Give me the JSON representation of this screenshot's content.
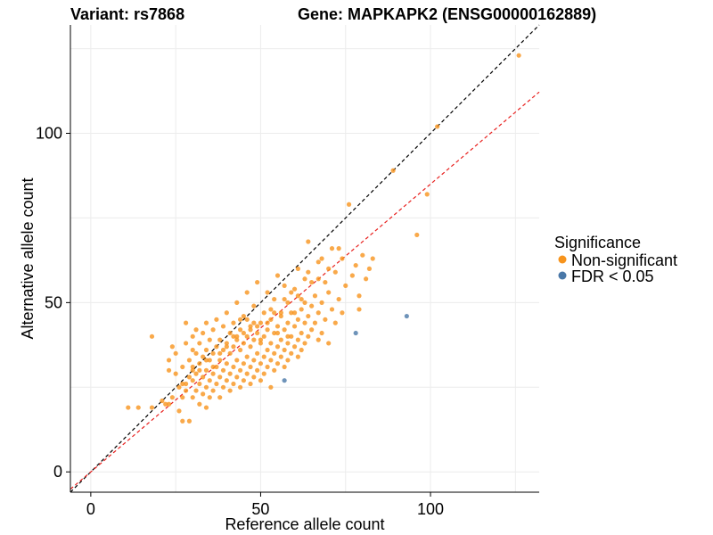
{
  "chart_data": {
    "type": "scatter",
    "title_left": "Variant: rs7868",
    "title_right": "Gene: MAPKAPK2 (ENSG00000162889)",
    "xlabel": "Reference allele count",
    "ylabel": "Alternative allele count",
    "xlim": [
      -6,
      132
    ],
    "ylim": [
      -6,
      132
    ],
    "x_ticks": [
      0,
      50,
      100
    ],
    "y_ticks": [
      0,
      50,
      100
    ],
    "grid": true,
    "legend": {
      "title": "Significance",
      "position": "right",
      "entries": [
        {
          "label": "Non-significant",
          "color": "#F7941D"
        },
        {
          "label": "FDR < 0.05",
          "color": "#4A78A8"
        }
      ]
    },
    "reference_lines": [
      {
        "style": "dashed",
        "color": "#000000",
        "slope": 1.0,
        "intercept": 0
      },
      {
        "style": "dashed",
        "color": "#E8201E",
        "slope": 0.85,
        "intercept": 0
      }
    ],
    "series": [
      {
        "name": "Non-significant",
        "color": "#F7941D",
        "points": [
          [
            11,
            19
          ],
          [
            14,
            19
          ],
          [
            18,
            19
          ],
          [
            18,
            40
          ],
          [
            21,
            21
          ],
          [
            22,
            20
          ],
          [
            23,
            20
          ],
          [
            23,
            30
          ],
          [
            23,
            33
          ],
          [
            24,
            37
          ],
          [
            25,
            29
          ],
          [
            25,
            35
          ],
          [
            26,
            18
          ],
          [
            27,
            15
          ],
          [
            27,
            22
          ],
          [
            27,
            26
          ],
          [
            27,
            31
          ],
          [
            28,
            24
          ],
          [
            28,
            38
          ],
          [
            28,
            44
          ],
          [
            29,
            15
          ],
          [
            29,
            28
          ],
          [
            29,
            33
          ],
          [
            30,
            22
          ],
          [
            30,
            27
          ],
          [
            30,
            31
          ],
          [
            30,
            36
          ],
          [
            30,
            40
          ],
          [
            31,
            24
          ],
          [
            31,
            29
          ],
          [
            31,
            35
          ],
          [
            31,
            42
          ],
          [
            32,
            20
          ],
          [
            32,
            26
          ],
          [
            32,
            32
          ],
          [
            32,
            38
          ],
          [
            33,
            23
          ],
          [
            33,
            28
          ],
          [
            33,
            34
          ],
          [
            33,
            41
          ],
          [
            34,
            19
          ],
          [
            34,
            25
          ],
          [
            34,
            30
          ],
          [
            34,
            36
          ],
          [
            34,
            44
          ],
          [
            35,
            22
          ],
          [
            35,
            27
          ],
          [
            35,
            33
          ],
          [
            35,
            39
          ],
          [
            36,
            24
          ],
          [
            36,
            29
          ],
          [
            36,
            35
          ],
          [
            36,
            42
          ],
          [
            37,
            26
          ],
          [
            37,
            31
          ],
          [
            37,
            37
          ],
          [
            37,
            45
          ],
          [
            38,
            22
          ],
          [
            38,
            28
          ],
          [
            38,
            33
          ],
          [
            38,
            39
          ],
          [
            39,
            25
          ],
          [
            39,
            30
          ],
          [
            39,
            36
          ],
          [
            39,
            43
          ],
          [
            40,
            27
          ],
          [
            40,
            32
          ],
          [
            40,
            38
          ],
          [
            40,
            47
          ],
          [
            41,
            24
          ],
          [
            41,
            29
          ],
          [
            41,
            35
          ],
          [
            41,
            41
          ],
          [
            42,
            26
          ],
          [
            42,
            31
          ],
          [
            42,
            37
          ],
          [
            42,
            44
          ],
          [
            43,
            28
          ],
          [
            43,
            33
          ],
          [
            43,
            39
          ],
          [
            43,
            50
          ],
          [
            44,
            25
          ],
          [
            44,
            30
          ],
          [
            44,
            36
          ],
          [
            44,
            42
          ],
          [
            45,
            27
          ],
          [
            45,
            32
          ],
          [
            45,
            38
          ],
          [
            45,
            46
          ],
          [
            46,
            29
          ],
          [
            46,
            34
          ],
          [
            46,
            40
          ],
          [
            46,
            53
          ],
          [
            47,
            26
          ],
          [
            47,
            31
          ],
          [
            47,
            37
          ],
          [
            47,
            43
          ],
          [
            48,
            28
          ],
          [
            48,
            33
          ],
          [
            48,
            39
          ],
          [
            48,
            49
          ],
          [
            49,
            30
          ],
          [
            49,
            35
          ],
          [
            49,
            41
          ],
          [
            49,
            56
          ],
          [
            50,
            27
          ],
          [
            50,
            32
          ],
          [
            50,
            38
          ],
          [
            50,
            44
          ],
          [
            51,
            29
          ],
          [
            51,
            34
          ],
          [
            51,
            40
          ],
          [
            51,
            47
          ],
          [
            52,
            31
          ],
          [
            52,
            36
          ],
          [
            52,
            42
          ],
          [
            52,
            53
          ],
          [
            53,
            25
          ],
          [
            53,
            33
          ],
          [
            53,
            38
          ],
          [
            53,
            45
          ],
          [
            54,
            30
          ],
          [
            54,
            35
          ],
          [
            54,
            41
          ],
          [
            54,
            51
          ],
          [
            55,
            32
          ],
          [
            55,
            37
          ],
          [
            55,
            43
          ],
          [
            55,
            58
          ],
          [
            56,
            34
          ],
          [
            56,
            39
          ],
          [
            56,
            46
          ],
          [
            57,
            31
          ],
          [
            57,
            36
          ],
          [
            57,
            42
          ],
          [
            57,
            55
          ],
          [
            58,
            33
          ],
          [
            58,
            38
          ],
          [
            58,
            44
          ],
          [
            58,
            50
          ],
          [
            59,
            35
          ],
          [
            59,
            40
          ],
          [
            59,
            47
          ],
          [
            60,
            37
          ],
          [
            60,
            43
          ],
          [
            60,
            54
          ],
          [
            61,
            34
          ],
          [
            61,
            39
          ],
          [
            61,
            45
          ],
          [
            61,
            60
          ],
          [
            62,
            36
          ],
          [
            62,
            41
          ],
          [
            62,
            48
          ],
          [
            63,
            38
          ],
          [
            63,
            44
          ],
          [
            63,
            57
          ],
          [
            64,
            40
          ],
          [
            64,
            46
          ],
          [
            64,
            68
          ],
          [
            65,
            42
          ],
          [
            65,
            49
          ],
          [
            66,
            44
          ],
          [
            66,
            52
          ],
          [
            67,
            39
          ],
          [
            67,
            47
          ],
          [
            67,
            62
          ],
          [
            68,
            41
          ],
          [
            68,
            50
          ],
          [
            69,
            45
          ],
          [
            69,
            56
          ],
          [
            70,
            38
          ],
          [
            70,
            53
          ],
          [
            71,
            48
          ],
          [
            71,
            66
          ],
          [
            72,
            44
          ],
          [
            72,
            59
          ],
          [
            73,
            51
          ],
          [
            74,
            47
          ],
          [
            74,
            63
          ],
          [
            75,
            55
          ],
          [
            76,
            79
          ],
          [
            77,
            58
          ],
          [
            78,
            61
          ],
          [
            79,
            52
          ],
          [
            79,
            48
          ],
          [
            80,
            64
          ],
          [
            81,
            57
          ],
          [
            82,
            60
          ],
          [
            83,
            63
          ],
          [
            89,
            89
          ],
          [
            96,
            70
          ],
          [
            99,
            82
          ],
          [
            102,
            102
          ],
          [
            126,
            123
          ],
          [
            45,
            41
          ],
          [
            47,
            42
          ],
          [
            48,
            44
          ],
          [
            43,
            40
          ],
          [
            49,
            43
          ],
          [
            42,
            40
          ],
          [
            52,
            44
          ],
          [
            50,
            39
          ],
          [
            55,
            41
          ],
          [
            58,
            40
          ],
          [
            60,
            47
          ],
          [
            62,
            51
          ],
          [
            65,
            56
          ],
          [
            68,
            63
          ],
          [
            56,
            47
          ],
          [
            53,
            48
          ],
          [
            40,
            37
          ],
          [
            38,
            35
          ],
          [
            36,
            31
          ],
          [
            34,
            33
          ],
          [
            32,
            30
          ],
          [
            30,
            30
          ],
          [
            28,
            26
          ],
          [
            26,
            25
          ],
          [
            24,
            22
          ],
          [
            46,
            45
          ],
          [
            44,
            45
          ],
          [
            57,
            51
          ],
          [
            59,
            53
          ],
          [
            63,
            50
          ],
          [
            67,
            57
          ],
          [
            70,
            60
          ],
          [
            73,
            66
          ],
          [
            64,
            59
          ],
          [
            61,
            52
          ],
          [
            54,
            47
          ]
        ]
      },
      {
        "name": "FDR < 0.05",
        "color": "#4A78A8",
        "points": [
          [
            57,
            27
          ],
          [
            78,
            41
          ],
          [
            93,
            46
          ]
        ]
      }
    ]
  }
}
